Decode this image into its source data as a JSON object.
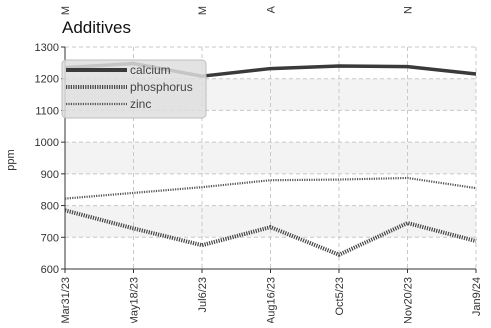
{
  "chart_data": {
    "type": "line",
    "title": "Additives",
    "xlabel": "",
    "ylabel": "ppm",
    "ylim": [
      600,
      1300
    ],
    "yticks": [
      600,
      700,
      800,
      900,
      1000,
      1100,
      1200,
      1300
    ],
    "categories": [
      "Mar31/23",
      "May18/23",
      "Jul6/23",
      "Aug16/23",
      "Oct5/23",
      "Nov20/23",
      "Jan9/24"
    ],
    "top_labels": [
      "M",
      "M",
      "A",
      "N"
    ],
    "grid": true,
    "legend_position": "top-left",
    "series": [
      {
        "name": "calcium",
        "values": [
          1235,
          1248,
          1208,
          1232,
          1240,
          1238,
          1215
        ],
        "color": "#3a3a3a",
        "style": "solid"
      },
      {
        "name": "phosphorus",
        "values": [
          785,
          728,
          675,
          732,
          645,
          745,
          688
        ],
        "color": "#444444",
        "style": "dotted-thick"
      },
      {
        "name": "zinc",
        "values": [
          822,
          840,
          858,
          880,
          882,
          887,
          855
        ],
        "color": "#555555",
        "style": "dotted-thin"
      }
    ],
    "band_color": "#f3f3f3"
  }
}
